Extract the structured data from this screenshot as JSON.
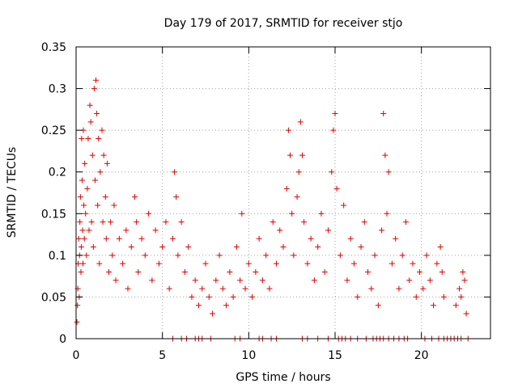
{
  "chart_data": {
    "type": "scatter",
    "title": "Day 179 of 2017, SRMTID for receiver stjo",
    "xlabel": "GPS time / hours",
    "ylabel": "SRMTID / TECUs",
    "xlim": [
      0,
      24
    ],
    "ylim": [
      0,
      0.35
    ],
    "xticks": [
      0,
      5,
      10,
      15,
      20
    ],
    "yticks": [
      0,
      0.05,
      0.1,
      0.15,
      0.2,
      0.25,
      0.3,
      0.35
    ],
    "xtick_labels": [
      "0",
      "5",
      "10",
      "15",
      "20"
    ],
    "ytick_labels": [
      "0",
      "0.05",
      "0.1",
      "0.15",
      "0.2",
      "0.25",
      "0.3",
      "0.35"
    ],
    "grid": true,
    "marker": "+",
    "series": [
      {
        "name": "SRMTID",
        "color": "#e00000",
        "points": [
          [
            0.05,
            0.02
          ],
          [
            0.08,
            0.04
          ],
          [
            0.1,
            0.06
          ],
          [
            0.12,
            0.09
          ],
          [
            0.15,
            0.12
          ],
          [
            0.18,
            0.05
          ],
          [
            0.2,
            0.1
          ],
          [
            0.22,
            0.14
          ],
          [
            0.25,
            0.17
          ],
          [
            0.28,
            0.08
          ],
          [
            0.3,
            0.11
          ],
          [
            0.32,
            0.24
          ],
          [
            0.35,
            0.19
          ],
          [
            0.38,
            0.13
          ],
          [
            0.4,
            0.09
          ],
          [
            0.42,
            0.25
          ],
          [
            0.45,
            0.16
          ],
          [
            0.48,
            0.12
          ],
          [
            0.5,
            0.21
          ],
          [
            0.55,
            0.15
          ],
          [
            0.6,
            0.1
          ],
          [
            0.65,
            0.18
          ],
          [
            0.7,
            0.24
          ],
          [
            0.75,
            0.13
          ],
          [
            0.8,
            0.28
          ],
          [
            0.85,
            0.26
          ],
          [
            0.9,
            0.14
          ],
          [
            0.95,
            0.22
          ],
          [
            1.0,
            0.11
          ],
          [
            1.05,
            0.3
          ],
          [
            1.1,
            0.19
          ],
          [
            1.15,
            0.31
          ],
          [
            1.2,
            0.27
          ],
          [
            1.25,
            0.16
          ],
          [
            1.3,
            0.24
          ],
          [
            1.35,
            0.09
          ],
          [
            1.4,
            0.2
          ],
          [
            1.5,
            0.25
          ],
          [
            1.55,
            0.14
          ],
          [
            1.6,
            0.22
          ],
          [
            1.7,
            0.17
          ],
          [
            1.75,
            0.12
          ],
          [
            1.8,
            0.21
          ],
          [
            1.9,
            0.08
          ],
          [
            2.0,
            0.14
          ],
          [
            2.1,
            0.1
          ],
          [
            2.2,
            0.16
          ],
          [
            2.3,
            0.07
          ],
          [
            2.5,
            0.12
          ],
          [
            2.7,
            0.09
          ],
          [
            2.9,
            0.13
          ],
          [
            3.0,
            0.06
          ],
          [
            3.2,
            0.11
          ],
          [
            3.4,
            0.17
          ],
          [
            3.5,
            0.14
          ],
          [
            3.6,
            0.08
          ],
          [
            3.8,
            0.12
          ],
          [
            4.0,
            0.1
          ],
          [
            4.2,
            0.15
          ],
          [
            4.4,
            0.07
          ],
          [
            4.6,
            0.13
          ],
          [
            4.8,
            0.09
          ],
          [
            5.0,
            0.11
          ],
          [
            5.2,
            0.14
          ],
          [
            5.4,
            0.06
          ],
          [
            5.6,
            0.12
          ],
          [
            5.7,
            0.2
          ],
          [
            5.8,
            0.17
          ],
          [
            5.9,
            0.1
          ],
          [
            6.1,
            0.14
          ],
          [
            6.3,
            0.08
          ],
          [
            6.5,
            0.11
          ],
          [
            6.7,
            0.05
          ],
          [
            6.9,
            0.07
          ],
          [
            7.1,
            0.04
          ],
          [
            7.3,
            0.06
          ],
          [
            7.5,
            0.09
          ],
          [
            7.7,
            0.05
          ],
          [
            7.9,
            0.03
          ],
          [
            8.1,
            0.07
          ],
          [
            8.3,
            0.1
          ],
          [
            8.5,
            0.06
          ],
          [
            8.7,
            0.04
          ],
          [
            8.9,
            0.08
          ],
          [
            9.1,
            0.05
          ],
          [
            9.3,
            0.11
          ],
          [
            9.5,
            0.07
          ],
          [
            9.6,
            0.15
          ],
          [
            9.8,
            0.06
          ],
          [
            10.0,
            0.09
          ],
          [
            10.2,
            0.05
          ],
          [
            10.4,
            0.08
          ],
          [
            10.6,
            0.12
          ],
          [
            10.8,
            0.07
          ],
          [
            11.0,
            0.1
          ],
          [
            11.2,
            0.06
          ],
          [
            11.4,
            0.14
          ],
          [
            11.6,
            0.09
          ],
          [
            11.8,
            0.13
          ],
          [
            12.0,
            0.11
          ],
          [
            12.2,
            0.18
          ],
          [
            12.3,
            0.25
          ],
          [
            12.4,
            0.22
          ],
          [
            12.5,
            0.15
          ],
          [
            12.6,
            0.1
          ],
          [
            12.8,
            0.17
          ],
          [
            12.9,
            0.2
          ],
          [
            13.0,
            0.26
          ],
          [
            13.1,
            0.22
          ],
          [
            13.2,
            0.14
          ],
          [
            13.4,
            0.09
          ],
          [
            13.6,
            0.12
          ],
          [
            13.8,
            0.07
          ],
          [
            14.0,
            0.11
          ],
          [
            14.2,
            0.15
          ],
          [
            14.4,
            0.08
          ],
          [
            14.6,
            0.13
          ],
          [
            14.8,
            0.2
          ],
          [
            14.9,
            0.25
          ],
          [
            15.0,
            0.27
          ],
          [
            15.1,
            0.18
          ],
          [
            15.3,
            0.1
          ],
          [
            15.5,
            0.16
          ],
          [
            15.7,
            0.07
          ],
          [
            15.9,
            0.12
          ],
          [
            16.1,
            0.09
          ],
          [
            16.3,
            0.05
          ],
          [
            16.5,
            0.11
          ],
          [
            16.7,
            0.14
          ],
          [
            16.9,
            0.08
          ],
          [
            17.1,
            0.06
          ],
          [
            17.3,
            0.1
          ],
          [
            17.5,
            0.04
          ],
          [
            17.7,
            0.13
          ],
          [
            17.8,
            0.27
          ],
          [
            17.9,
            0.22
          ],
          [
            18.0,
            0.15
          ],
          [
            18.1,
            0.2
          ],
          [
            18.3,
            0.09
          ],
          [
            18.5,
            0.12
          ],
          [
            18.7,
            0.06
          ],
          [
            18.9,
            0.1
          ],
          [
            19.1,
            0.14
          ],
          [
            19.3,
            0.07
          ],
          [
            19.5,
            0.09
          ],
          [
            19.7,
            0.05
          ],
          [
            19.9,
            0.08
          ],
          [
            20.1,
            0.06
          ],
          [
            20.3,
            0.1
          ],
          [
            20.5,
            0.07
          ],
          [
            20.7,
            0.04
          ],
          [
            20.9,
            0.09
          ],
          [
            21.1,
            0.11
          ],
          [
            21.2,
            0.08
          ],
          [
            21.3,
            0.05
          ],
          [
            22.0,
            0.04
          ],
          [
            22.2,
            0.06
          ],
          [
            22.3,
            0.05
          ],
          [
            22.4,
            0.08
          ],
          [
            22.5,
            0.07
          ],
          [
            22.6,
            0.03
          ],
          [
            5.6,
            0
          ],
          [
            6.1,
            0
          ],
          [
            6.4,
            0
          ],
          [
            6.9,
            0
          ],
          [
            7.1,
            0
          ],
          [
            7.3,
            0
          ],
          [
            7.8,
            0
          ],
          [
            9.2,
            0
          ],
          [
            9.5,
            0
          ],
          [
            10.6,
            0
          ],
          [
            10.8,
            0
          ],
          [
            11.3,
            0
          ],
          [
            11.6,
            0
          ],
          [
            13.1,
            0
          ],
          [
            13.4,
            0
          ],
          [
            14.0,
            0
          ],
          [
            14.6,
            0
          ],
          [
            15.2,
            0
          ],
          [
            15.4,
            0
          ],
          [
            15.6,
            0
          ],
          [
            15.9,
            0
          ],
          [
            16.3,
            0
          ],
          [
            16.8,
            0
          ],
          [
            17.2,
            0
          ],
          [
            17.4,
            0
          ],
          [
            17.6,
            0
          ],
          [
            17.8,
            0
          ],
          [
            18.1,
            0
          ],
          [
            18.4,
            0
          ],
          [
            18.7,
            0
          ],
          [
            19.0,
            0
          ],
          [
            19.2,
            0
          ],
          [
            20.2,
            0
          ],
          [
            20.6,
            0
          ],
          [
            21.0,
            0
          ],
          [
            21.3,
            0
          ],
          [
            21.5,
            0
          ],
          [
            21.7,
            0
          ],
          [
            21.9,
            0
          ],
          [
            22.1,
            0
          ],
          [
            22.3,
            0
          ],
          [
            22.7,
            0
          ]
        ]
      }
    ]
  }
}
